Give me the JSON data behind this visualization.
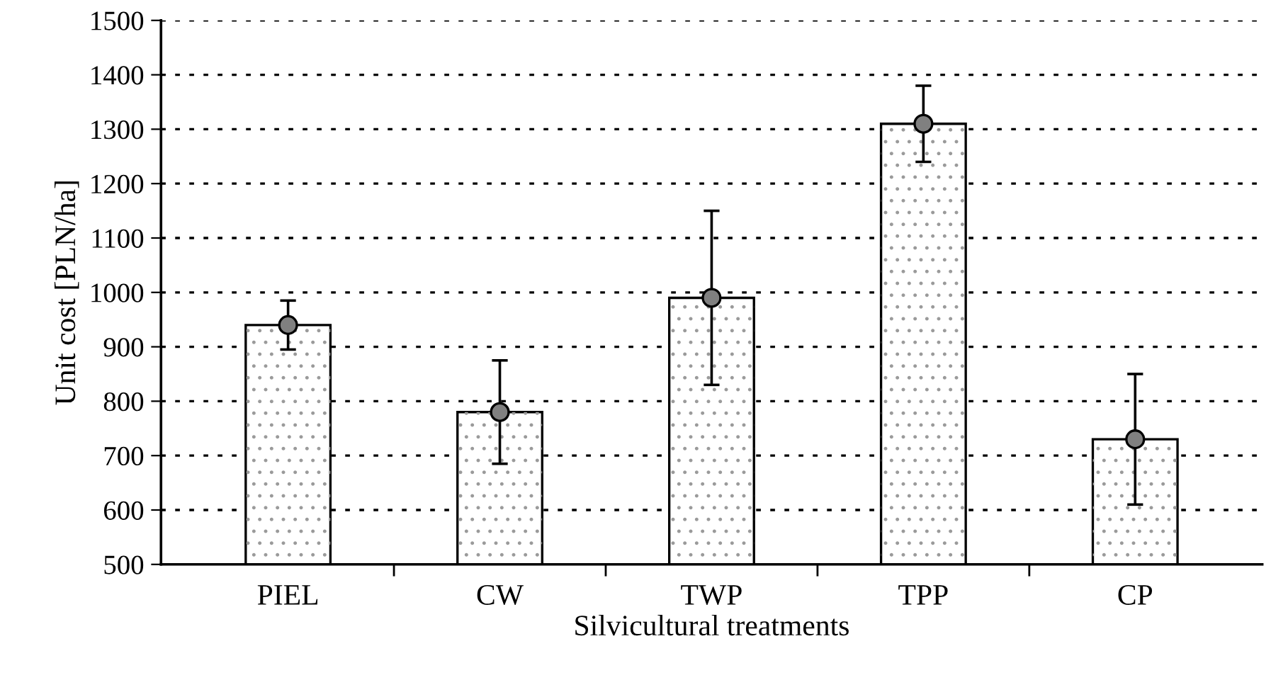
{
  "chart_data": {
    "type": "bar",
    "xlabel": "Silvicultural treatments",
    "ylabel": "Unit cost [PLN/ha]",
    "categories": [
      "PIEL",
      "CW",
      "TWP",
      "TPP",
      "CP"
    ],
    "series": [
      {
        "color": "#ffffff",
        "values": [
          940,
          780,
          990,
          1310,
          730
        ],
        "errors": [
          [
            895,
            985
          ],
          [
            685,
            875
          ],
          [
            830,
            1150
          ],
          [
            1240,
            1380
          ],
          [
            610,
            850
          ]
        ]
      },
      {
        "type": "scatter",
        "x": [
          "PIEL",
          "CW",
          "TWP",
          "TPP",
          "CP"
        ],
        "color": "#808080",
        "marker": "circle",
        "values": [
          940,
          780,
          990,
          1310,
          730
        ]
      }
    ],
    "ylim": [
      500,
      1500
    ],
    "yticks": [
      500,
      600,
      700,
      800,
      900,
      1000,
      1100,
      1200,
      1300,
      1400,
      1500
    ],
    "grid": "y"
  }
}
